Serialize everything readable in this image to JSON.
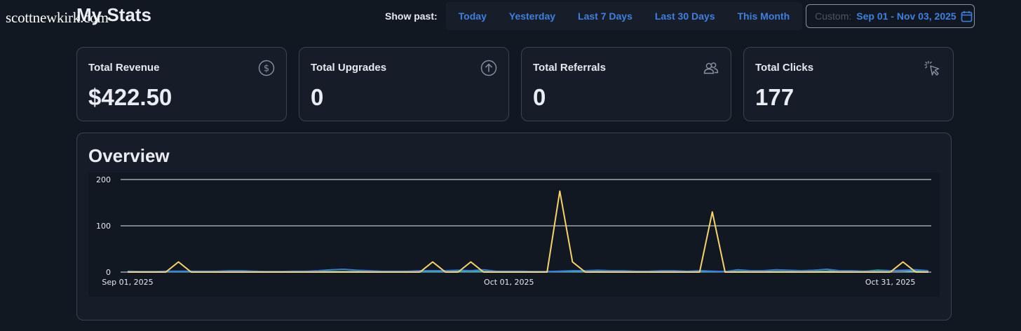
{
  "watermark": "scottnewkirk.com",
  "page": {
    "title": "My Stats"
  },
  "filters": {
    "label": "Show past:",
    "ranges": [
      "Today",
      "Yesterday",
      "Last 7 Days",
      "Last 30 Days",
      "This Month"
    ],
    "custom_label": "Custom:",
    "custom_value": "Sep 01 - Nov 03, 2025",
    "custom_icon": "calendar-icon"
  },
  "cards": [
    {
      "label": "Total Revenue",
      "value": "$422.50",
      "icon": "dollar-circle-icon"
    },
    {
      "label": "Total Upgrades",
      "value": "0",
      "icon": "arrow-up-circle-icon"
    },
    {
      "label": "Total Referrals",
      "value": "0",
      "icon": "users-icon"
    },
    {
      "label": "Total Clicks",
      "value": "177",
      "icon": "cursor-click-icon"
    }
  ],
  "overview": {
    "title": "Overview"
  },
  "colors": {
    "accent": "#3f7fe0",
    "clicks_line": "#f6d36b",
    "revenue_line": "#3a7be0",
    "secondary_line": "#39b9a6"
  },
  "chart_data": {
    "type": "line",
    "x_start": "2025-09-01",
    "x_end": "2025-11-03",
    "x_tick_labels": [
      "Sep 01, 2025",
      "Oct 01, 2025",
      "Oct 31, 2025"
    ],
    "x_ticks": [
      "2025-09-01",
      "2025-10-01",
      "2025-10-31"
    ],
    "y_ticks": [
      0,
      100,
      200
    ],
    "ylim": [
      0,
      200
    ],
    "grid": true,
    "series": [
      {
        "color": "#f6d36b",
        "values": [
          0,
          0,
          0,
          0,
          22,
          0,
          0,
          0,
          0,
          0,
          0,
          0,
          0,
          0,
          0,
          0,
          0,
          0,
          0,
          0,
          0,
          0,
          0,
          0,
          22,
          0,
          0,
          22,
          0,
          0,
          0,
          0,
          0,
          0,
          175,
          22,
          0,
          0,
          0,
          0,
          0,
          0,
          0,
          0,
          0,
          0,
          130,
          0,
          0,
          0,
          0,
          0,
          0,
          0,
          0,
          0,
          0,
          0,
          0,
          0,
          0,
          22,
          0,
          0
        ]
      },
      {
        "color": "#3a7be0",
        "values": [
          2,
          1,
          1,
          2,
          2,
          2,
          2,
          2,
          3,
          3,
          2,
          1,
          1,
          2,
          2,
          3,
          5,
          6,
          4,
          3,
          2,
          2,
          2,
          3,
          3,
          3,
          4,
          3,
          5,
          2,
          2,
          2,
          1,
          1,
          2,
          3,
          3,
          4,
          3,
          3,
          2,
          2,
          3,
          3,
          2,
          3,
          2,
          1,
          5,
          3,
          3,
          5,
          4,
          3,
          4,
          6,
          3,
          3,
          2,
          2,
          3,
          4,
          5,
          3
        ]
      },
      {
        "color": "#39b9a6",
        "values": [
          1,
          1,
          1,
          1,
          1,
          1,
          1,
          1,
          1,
          1,
          1,
          1,
          1,
          1,
          1,
          1,
          1,
          1,
          1,
          1,
          1,
          1,
          1,
          1,
          1,
          1,
          1,
          1,
          1,
          1,
          1,
          1,
          1,
          1,
          1,
          1,
          1,
          1,
          1,
          1,
          1,
          1,
          1,
          1,
          1,
          1,
          1,
          1,
          1,
          1,
          1,
          1,
          1,
          1,
          1,
          2,
          3,
          2,
          2,
          4,
          3,
          3,
          2,
          1
        ]
      }
    ]
  }
}
